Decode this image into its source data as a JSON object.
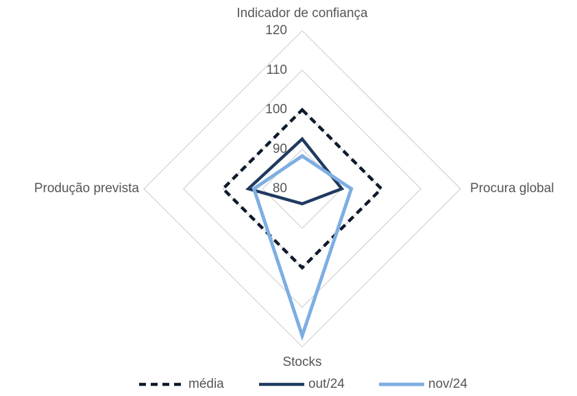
{
  "chart_data": {
    "type": "radar",
    "categories": [
      "Indicador de confiança",
      "Procura global",
      "Stocks",
      "Produção prevista"
    ],
    "series": [
      {
        "name": "média",
        "color": "#0e1a2b",
        "dash": true,
        "values": [
          100,
          100,
          100,
          100
        ]
      },
      {
        "name": "out/24",
        "color": "#1f3a5f",
        "dash": false,
        "values": [
          92.6,
          90,
          83.8,
          93.6
        ]
      },
      {
        "name": "nov/24",
        "color": "#7eaee2",
        "dash": false,
        "values": [
          88.3,
          92.4,
          117.2,
          92.2
        ]
      }
    ],
    "rlim": [
      80,
      120
    ],
    "rticks": [
      80,
      90,
      100,
      110,
      120
    ],
    "grid": true,
    "legend": "bottom"
  }
}
